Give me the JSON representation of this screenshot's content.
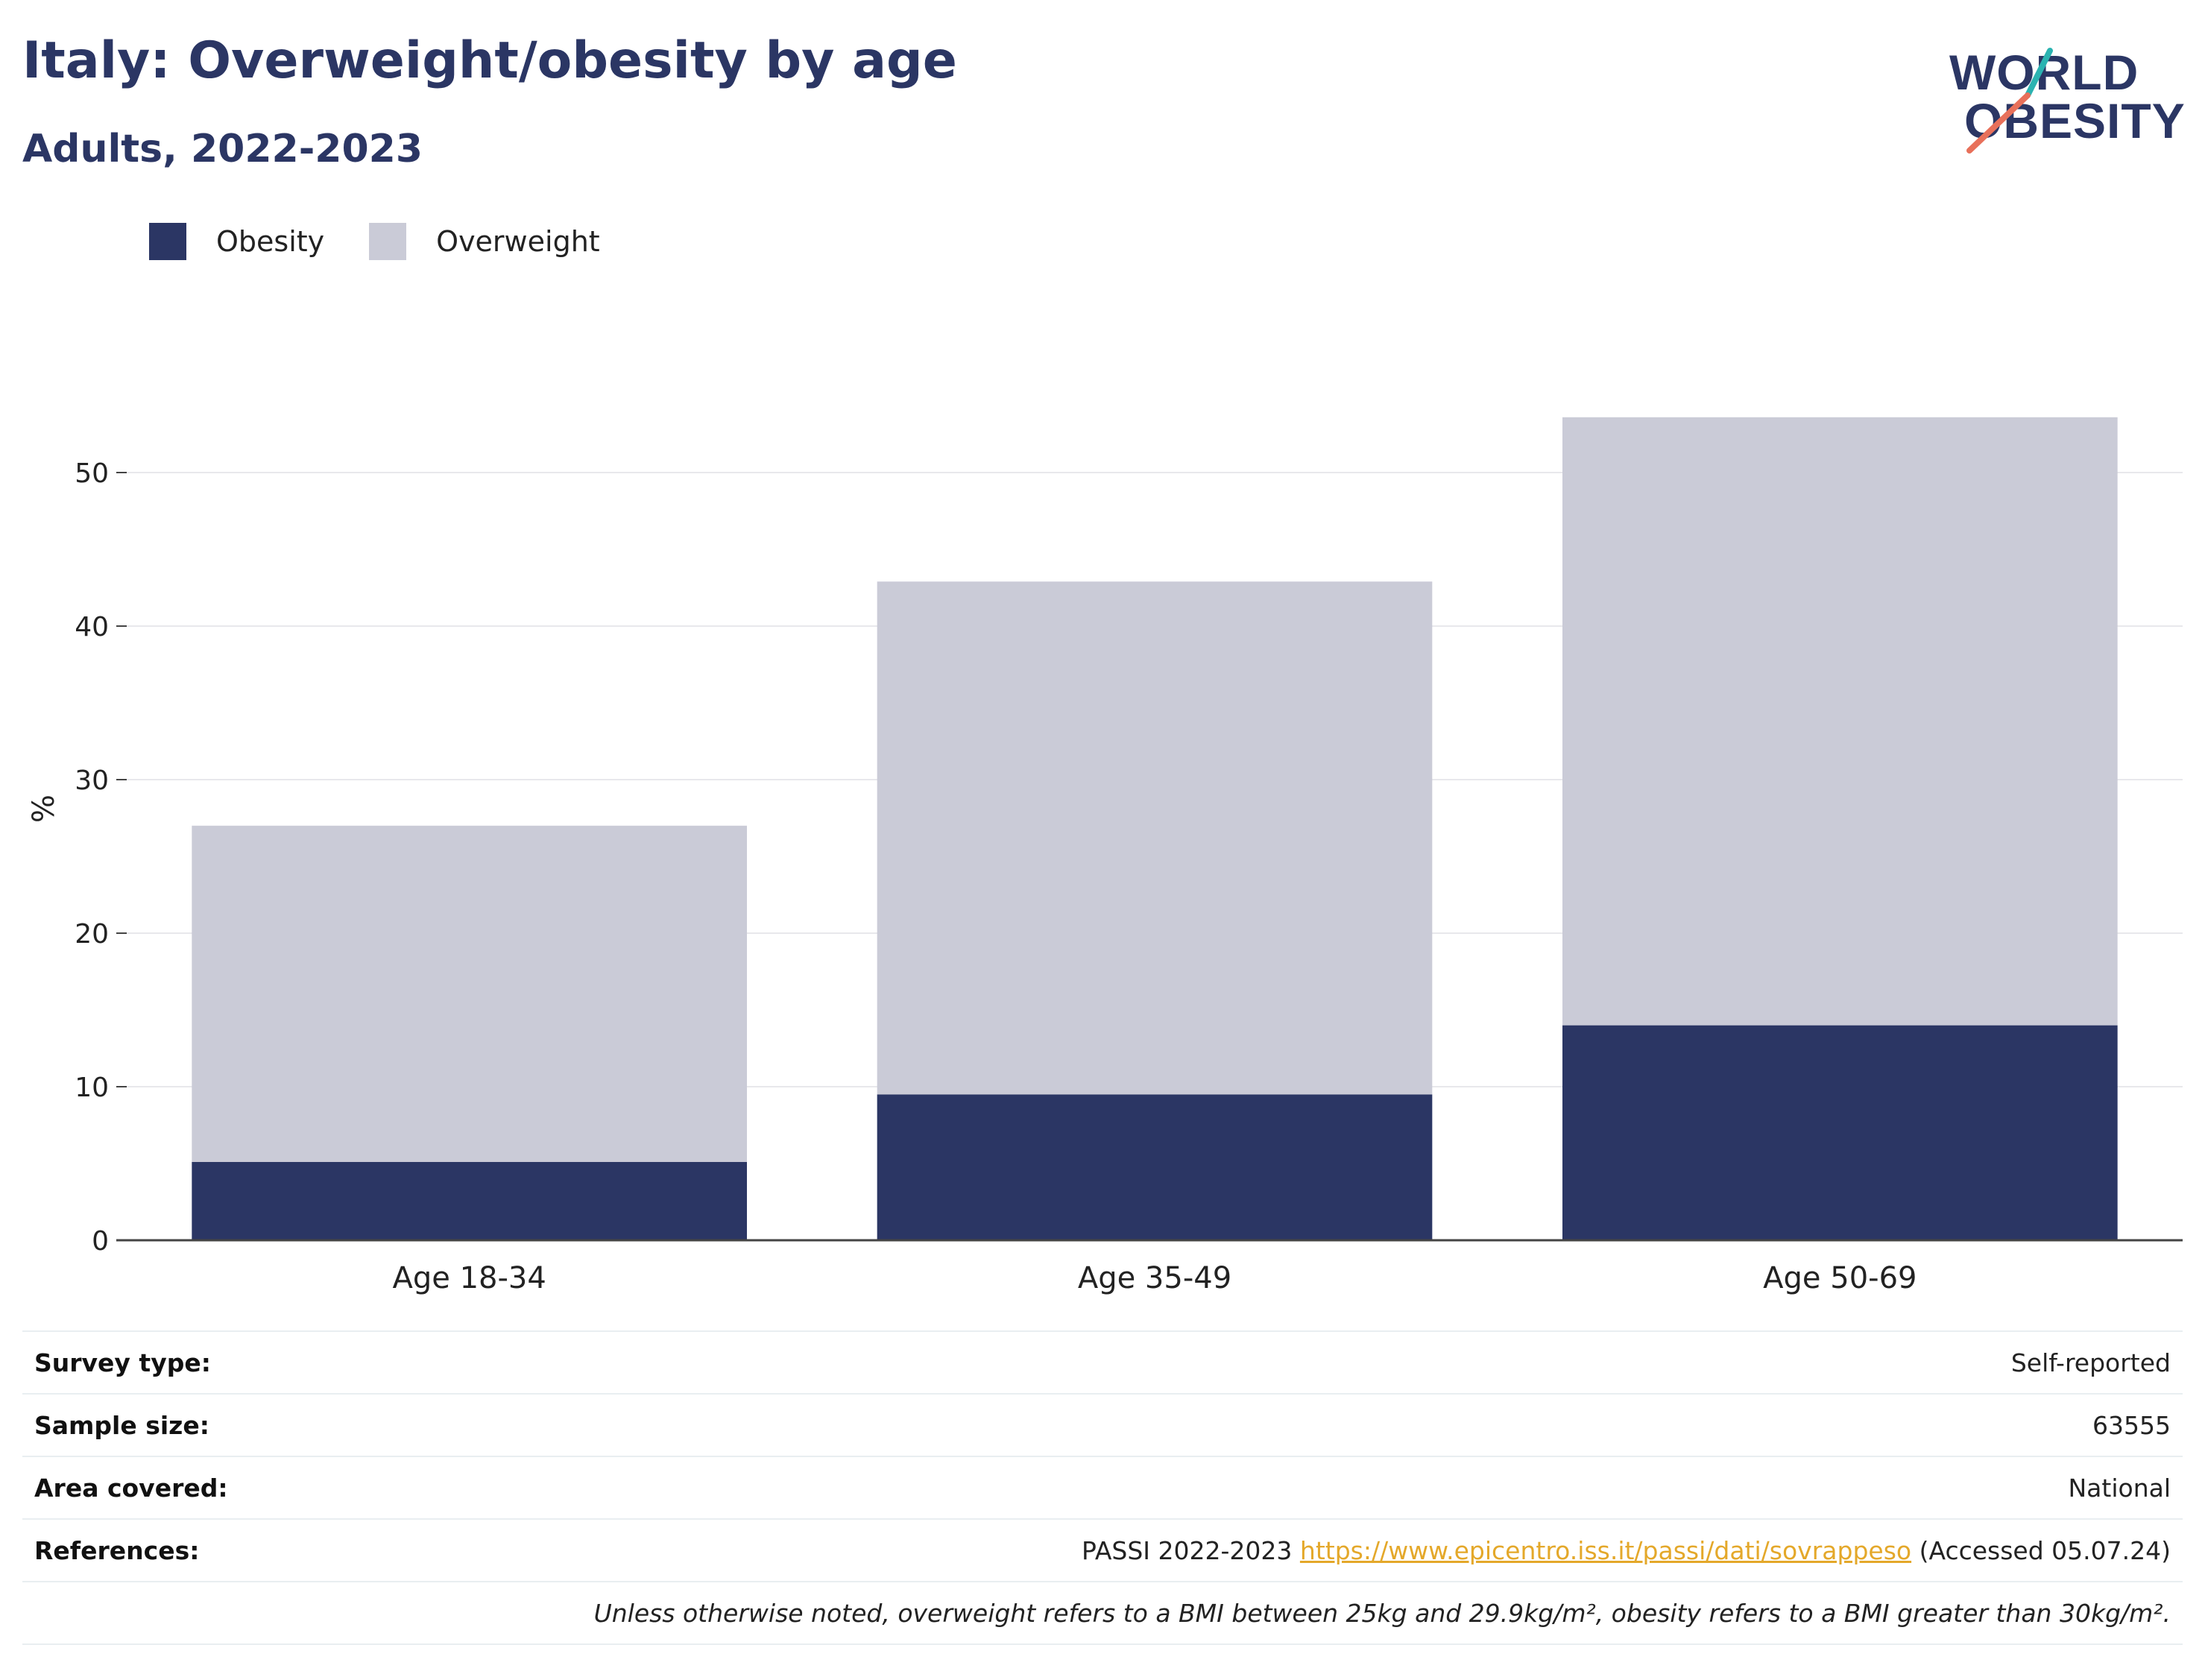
{
  "title": "Italy: Overweight/obesity by age",
  "subtitle": "Adults, 2022-2023",
  "logo": {
    "line1": "WORLD",
    "line2": "OBESITY",
    "text_color": "#2b3664",
    "accent_teal": "#2bb3b1",
    "accent_coral": "#e8705a"
  },
  "legend": [
    {
      "label": "Obesity",
      "color": "#2b3664"
    },
    {
      "label": "Overweight",
      "color": "#cacbd7"
    }
  ],
  "chart_data": {
    "type": "bar",
    "stacked": true,
    "categories": [
      "Age 18-34",
      "Age 35-49",
      "Age 50-69"
    ],
    "series": [
      {
        "name": "Obesity",
        "color": "#2b3664",
        "values": [
          5.1,
          9.5,
          14.0
        ]
      },
      {
        "name": "Overweight",
        "color": "#cacbd7",
        "values": [
          21.9,
          33.4,
          39.6
        ]
      }
    ],
    "ylabel": "%",
    "xlabel": "",
    "ylim": [
      0,
      60
    ],
    "yticks": [
      0,
      10,
      20,
      30,
      40,
      50
    ],
    "grid": true,
    "legend_position": "top-left"
  },
  "info": {
    "survey_type": {
      "label": "Survey type:",
      "value": "Self-reported"
    },
    "sample_size": {
      "label": "Sample size:",
      "value": "63555"
    },
    "area_covered": {
      "label": "Area covered:",
      "value": "National"
    },
    "references": {
      "label": "References:",
      "prefix": "PASSI 2022-2023",
      "link": "https://www.epicentro.iss.it/passi/dati/sovrappeso",
      "suffix": "(Accessed 05.07.24)"
    },
    "note": "Unless otherwise noted, overweight refers to a BMI between 25kg and 29.9kg/m², obesity refers to a BMI greater than 30kg/m²."
  }
}
